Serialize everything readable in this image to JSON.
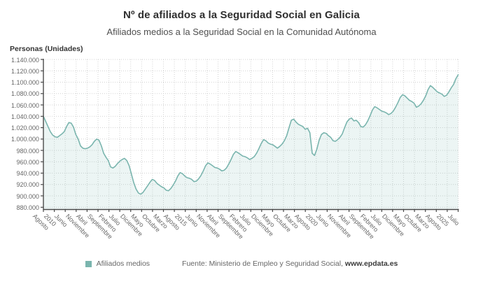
{
  "header": {
    "title": "Nº de afiliados a la Seguridad Social en Galicia",
    "subtitle": "Afiliados medios a la Seguridad Social en la Comunidad Autónoma"
  },
  "axes": {
    "y_title": "Personas (Unidades)",
    "y_ticks": [
      {
        "v": 1140000,
        "label": "1.140.000"
      },
      {
        "v": 1120000,
        "label": "1.120.000"
      },
      {
        "v": 1100000,
        "label": "1.100.000"
      },
      {
        "v": 1080000,
        "label": "1.080.000"
      },
      {
        "v": 1060000,
        "label": "1.060.000"
      },
      {
        "v": 1040000,
        "label": "1.040.000"
      },
      {
        "v": 1020000,
        "label": "1.020.000"
      },
      {
        "v": 1000000,
        "label": "1.000.000"
      },
      {
        "v": 980000,
        "label": "980.000"
      },
      {
        "v": 960000,
        "label": "960.000"
      },
      {
        "v": 940000,
        "label": "940.000"
      },
      {
        "v": 920000,
        "label": "920.000"
      },
      {
        "v": 900000,
        "label": "900.000"
      },
      {
        "v": 880000,
        "label": "880.000"
      }
    ],
    "x_ticks": [
      "Agosto",
      "2010",
      "Junio",
      "Noviembre",
      "Abril",
      "Septiembre",
      "Febrero",
      "Julio",
      "Diciembre",
      "Mayo",
      "Octubre",
      "Marzo",
      "Agosto",
      "2015",
      "Junio",
      "Noviembre",
      "Abril",
      "Septiembre",
      "Febrero",
      "Julio",
      "Diciembre",
      "Mayo",
      "Octubre",
      "Marzo",
      "Agosto",
      "2020",
      "Junio",
      "Noviembre",
      "Abril",
      "Septiembre",
      "Febrero",
      "Julio",
      "Diciembre",
      "Mayo",
      "Octubre",
      "Marzo",
      "Agosto",
      "2025",
      "Julio"
    ]
  },
  "legend": {
    "label": "Afiliados medios",
    "color": "#7ab5ae"
  },
  "source": {
    "prefix": "Fuente: Ministerio de Empleo y Seguridad Social, ",
    "site": "www.epdata.es"
  },
  "chart_data": {
    "type": "line",
    "title": "Nº de afiliados a la Seguridad Social en Galicia",
    "subtitle": "Afiliados medios a la Seguridad Social en la Comunidad Autónoma",
    "ylabel": "Personas (Unidades)",
    "x_start": "Agosto 2010",
    "x_end": "Julio 2025",
    "x_freq": "monthly",
    "ylim": [
      876000,
      1140000
    ],
    "grid": true,
    "legend_position": "bottom",
    "line_color": "#7ab5ae",
    "fill_color": "rgba(122,181,174,0.14)",
    "series": [
      {
        "name": "Afiliados medios",
        "values": [
          1040000,
          1031000,
          1022000,
          1013000,
          1007000,
          1004000,
          1003000,
          1006000,
          1009000,
          1013000,
          1022000,
          1029000,
          1028000,
          1021000,
          1008000,
          1000000,
          988000,
          984000,
          983000,
          984000,
          986000,
          990000,
          996000,
          1000000,
          998000,
          988000,
          975000,
          968000,
          962000,
          951000,
          949000,
          952000,
          957000,
          961000,
          964000,
          966000,
          962000,
          953000,
          938000,
          923000,
          912000,
          905000,
          903000,
          906000,
          912000,
          918000,
          924000,
          929000,
          927000,
          922000,
          919000,
          916000,
          914000,
          910000,
          909000,
          913000,
          919000,
          926000,
          935000,
          941000,
          939000,
          935000,
          932000,
          931000,
          929000,
          925000,
          926000,
          930000,
          936000,
          944000,
          953000,
          958000,
          956000,
          953000,
          950000,
          949000,
          947000,
          944000,
          945000,
          949000,
          956000,
          964000,
          973000,
          978000,
          976000,
          973000,
          970000,
          969000,
          967000,
          964000,
          966000,
          969000,
          975000,
          983000,
          992000,
          999000,
          997000,
          993000,
          991000,
          990000,
          987000,
          984000,
          987000,
          991000,
          997000,
          1006000,
          1020000,
          1033000,
          1035000,
          1030000,
          1026000,
          1024000,
          1022000,
          1017000,
          1019000,
          1011000,
          975000,
          971000,
          982000,
          998000,
          1008000,
          1011000,
          1010000,
          1006000,
          1003000,
          997000,
          996000,
          999000,
          1003000,
          1009000,
          1020000,
          1030000,
          1035000,
          1037000,
          1032000,
          1033000,
          1029000,
          1022000,
          1021000,
          1025000,
          1032000,
          1041000,
          1051000,
          1057000,
          1055000,
          1052000,
          1049000,
          1048000,
          1046000,
          1043000,
          1045000,
          1049000,
          1056000,
          1064000,
          1073000,
          1078000,
          1076000,
          1072000,
          1068000,
          1066000,
          1063000,
          1056000,
          1058000,
          1062000,
          1068000,
          1076000,
          1087000,
          1094000,
          1091000,
          1087000,
          1083000,
          1081000,
          1079000,
          1075000,
          1077000,
          1083000,
          1090000,
          1096000,
          1106000,
          1113000
        ]
      }
    ]
  }
}
